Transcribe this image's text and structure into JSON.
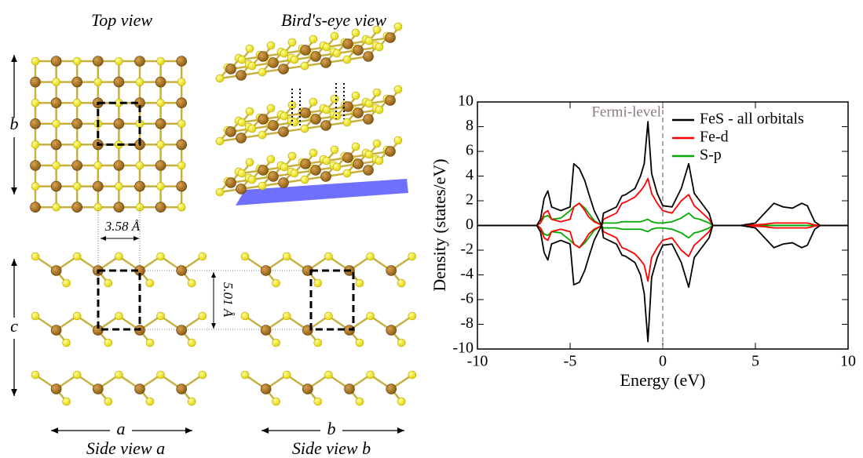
{
  "diagram": {
    "top_view_title": "Top view",
    "birds_eye_title": "Bird's-eye view",
    "axis_b": "b",
    "axis_c": "c",
    "axis_a": "a",
    "axis_b_side": "b",
    "lattice_a": "3.58 Å",
    "lattice_c": "5.01 Å",
    "side_view_a": "Side view a",
    "side_view_b": "Side view b"
  },
  "chart_data": {
    "type": "line",
    "xlabel": "Energy (eV)",
    "ylabel": "Density (states/eV)",
    "xlim": [
      -10,
      10
    ],
    "xticks": [
      -10,
      -5,
      0,
      5,
      10
    ],
    "ylim": [
      -10,
      10
    ],
    "yticks": [
      -10,
      -8,
      -6,
      -4,
      -2,
      0,
      2,
      4,
      6,
      8,
      10
    ],
    "legend": "upper right",
    "fermi_level": {
      "x": 0,
      "label": "Fermi-level",
      "color": "#8a7a7a"
    },
    "x": [
      -10,
      -6.8,
      -6.6,
      -6.4,
      -6.2,
      -6.0,
      -5.5,
      -5.0,
      -4.8,
      -4.5,
      -4.2,
      -4.0,
      -3.7,
      -3.4,
      -3.3,
      -3.2,
      -2.5,
      -2.2,
      -2.0,
      -1.5,
      -1.2,
      -1.0,
      -0.8,
      -0.6,
      -0.3,
      0,
      0.5,
      1.0,
      1.4,
      1.7,
      2.0,
      2.5,
      2.7,
      4.2,
      5.0,
      5.5,
      6.0,
      6.5,
      7.0,
      7.5,
      7.8,
      8.2,
      8.5,
      10
    ],
    "series": [
      {
        "name": "FeS - all orbitals",
        "color": "#000000",
        "values": [
          0,
          0,
          0.5,
          2.2,
          2.8,
          1.5,
          1.2,
          1.5,
          5.0,
          4.6,
          3.6,
          2.6,
          1.2,
          0.3,
          0,
          1.0,
          1.5,
          2.4,
          2.5,
          3.0,
          4.0,
          5.0,
          8.4,
          4.2,
          2.6,
          1.6,
          1.5,
          3.0,
          5.0,
          2.6,
          2.0,
          1.0,
          0,
          0,
          0.2,
          1.0,
          1.8,
          1.5,
          1.4,
          1.8,
          1.6,
          0.3,
          0,
          0
        ],
        "values_down": [
          0,
          0,
          -0.5,
          -2.2,
          -2.8,
          -1.5,
          -1.2,
          -1.5,
          -4.8,
          -4.6,
          -3.6,
          -2.6,
          -1.2,
          -0.3,
          0,
          -1.0,
          -1.5,
          -2.4,
          -2.5,
          -3.0,
          -4.0,
          -5.5,
          -9.4,
          -4.2,
          -2.6,
          -1.6,
          -1.5,
          -3.0,
          -5.0,
          -2.6,
          -2.0,
          -1.0,
          0,
          0,
          -0.2,
          -1.0,
          -1.8,
          -1.5,
          -1.4,
          -1.8,
          -1.6,
          -0.3,
          0,
          0
        ]
      },
      {
        "name": "Fe-d",
        "color": "#ff0000",
        "values": [
          0,
          0,
          0.2,
          1.0,
          1.2,
          0.5,
          0.3,
          0.5,
          1.5,
          1.8,
          1.2,
          0.7,
          0.3,
          0.1,
          0,
          0.5,
          1.0,
          1.8,
          1.9,
          2.3,
          2.8,
          3.2,
          3.8,
          2.6,
          1.8,
          1.2,
          1.0,
          2.0,
          2.5,
          1.6,
          1.2,
          0.5,
          0,
          0,
          0.05,
          0.1,
          0.2,
          0.2,
          0.2,
          0.2,
          0.2,
          0.05,
          0,
          0
        ],
        "values_down": [
          0,
          0,
          -0.2,
          -1.0,
          -1.2,
          -0.5,
          -0.3,
          -0.5,
          -1.5,
          -1.8,
          -1.2,
          -0.7,
          -0.3,
          -0.1,
          0,
          -0.5,
          -1.0,
          -1.8,
          -1.9,
          -2.3,
          -2.8,
          -3.2,
          -4.5,
          -2.6,
          -1.8,
          -1.2,
          -1.0,
          -2.0,
          -2.5,
          -1.6,
          -1.2,
          -0.5,
          0,
          0,
          -0.05,
          -0.1,
          -0.2,
          -0.2,
          -0.2,
          -0.2,
          -0.2,
          -0.05,
          0,
          0
        ]
      },
      {
        "name": "S-p",
        "color": "#00aa00",
        "values": [
          0,
          0,
          0.2,
          0.7,
          0.8,
          0.5,
          0.6,
          1.2,
          1.5,
          1.8,
          1.4,
          1.0,
          0.4,
          0.1,
          0,
          0.2,
          0.2,
          0.3,
          0.3,
          0.3,
          0.3,
          0.4,
          0.5,
          0.3,
          0.2,
          0.2,
          0.3,
          0.6,
          1.0,
          0.6,
          0.5,
          0.2,
          0,
          0,
          0,
          0,
          0,
          0,
          0,
          0,
          0,
          0,
          0,
          0
        ],
        "values_down": [
          0,
          0,
          -0.2,
          -0.7,
          -0.8,
          -0.5,
          -0.6,
          -1.2,
          -1.5,
          -1.8,
          -1.4,
          -1.0,
          -0.4,
          -0.1,
          0,
          -0.2,
          -0.2,
          -0.3,
          -0.3,
          -0.3,
          -0.3,
          -0.4,
          -0.5,
          -0.3,
          -0.2,
          -0.2,
          -0.3,
          -0.6,
          -1.0,
          -0.6,
          -0.5,
          -0.2,
          0,
          0,
          0,
          0,
          0,
          0,
          0,
          0,
          0,
          0,
          0,
          0
        ]
      }
    ]
  }
}
